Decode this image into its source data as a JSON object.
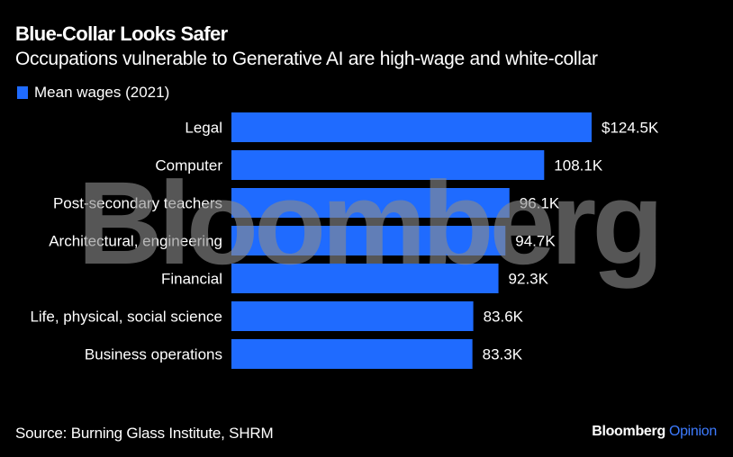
{
  "header": {
    "title": "Blue-Collar Looks Safer",
    "subtitle": "Occupations vulnerable to Generative AI are high-wage and white-collar"
  },
  "legend": {
    "label": "Mean wages (2021)",
    "color": "#1f6bff"
  },
  "watermark": "Bloomberg",
  "footer": {
    "source": "Source: Burning Glass Institute, SHRM",
    "brand_main": "Bloomberg",
    "brand_sub": "Opinion",
    "brand_sub_color": "#3d7bff"
  },
  "chart_data": {
    "type": "bar",
    "orientation": "horizontal",
    "title": "Blue-Collar Looks Safer",
    "subtitle": "Occupations vulnerable to Generative AI are high-wage and white-collar",
    "xlabel": "",
    "ylabel": "",
    "xlim": [
      0,
      124.5
    ],
    "grid": false,
    "legend_position": "top-left",
    "categories": [
      "Legal",
      "Computer",
      "Post-secondary teachers",
      "Architectural, engineering",
      "Financial",
      "Life, physical, social science",
      "Business operations"
    ],
    "series": [
      {
        "name": "Mean wages (2021)",
        "unit": "thousand USD",
        "color": "#1f6bff",
        "values": [
          124.5,
          108.1,
          96.1,
          94.7,
          92.3,
          83.6,
          83.3
        ],
        "labels": [
          "$124.5K",
          "108.1K",
          "96.1K",
          "94.7K",
          "92.3K",
          "83.6K",
          "83.3K"
        ]
      }
    ]
  }
}
